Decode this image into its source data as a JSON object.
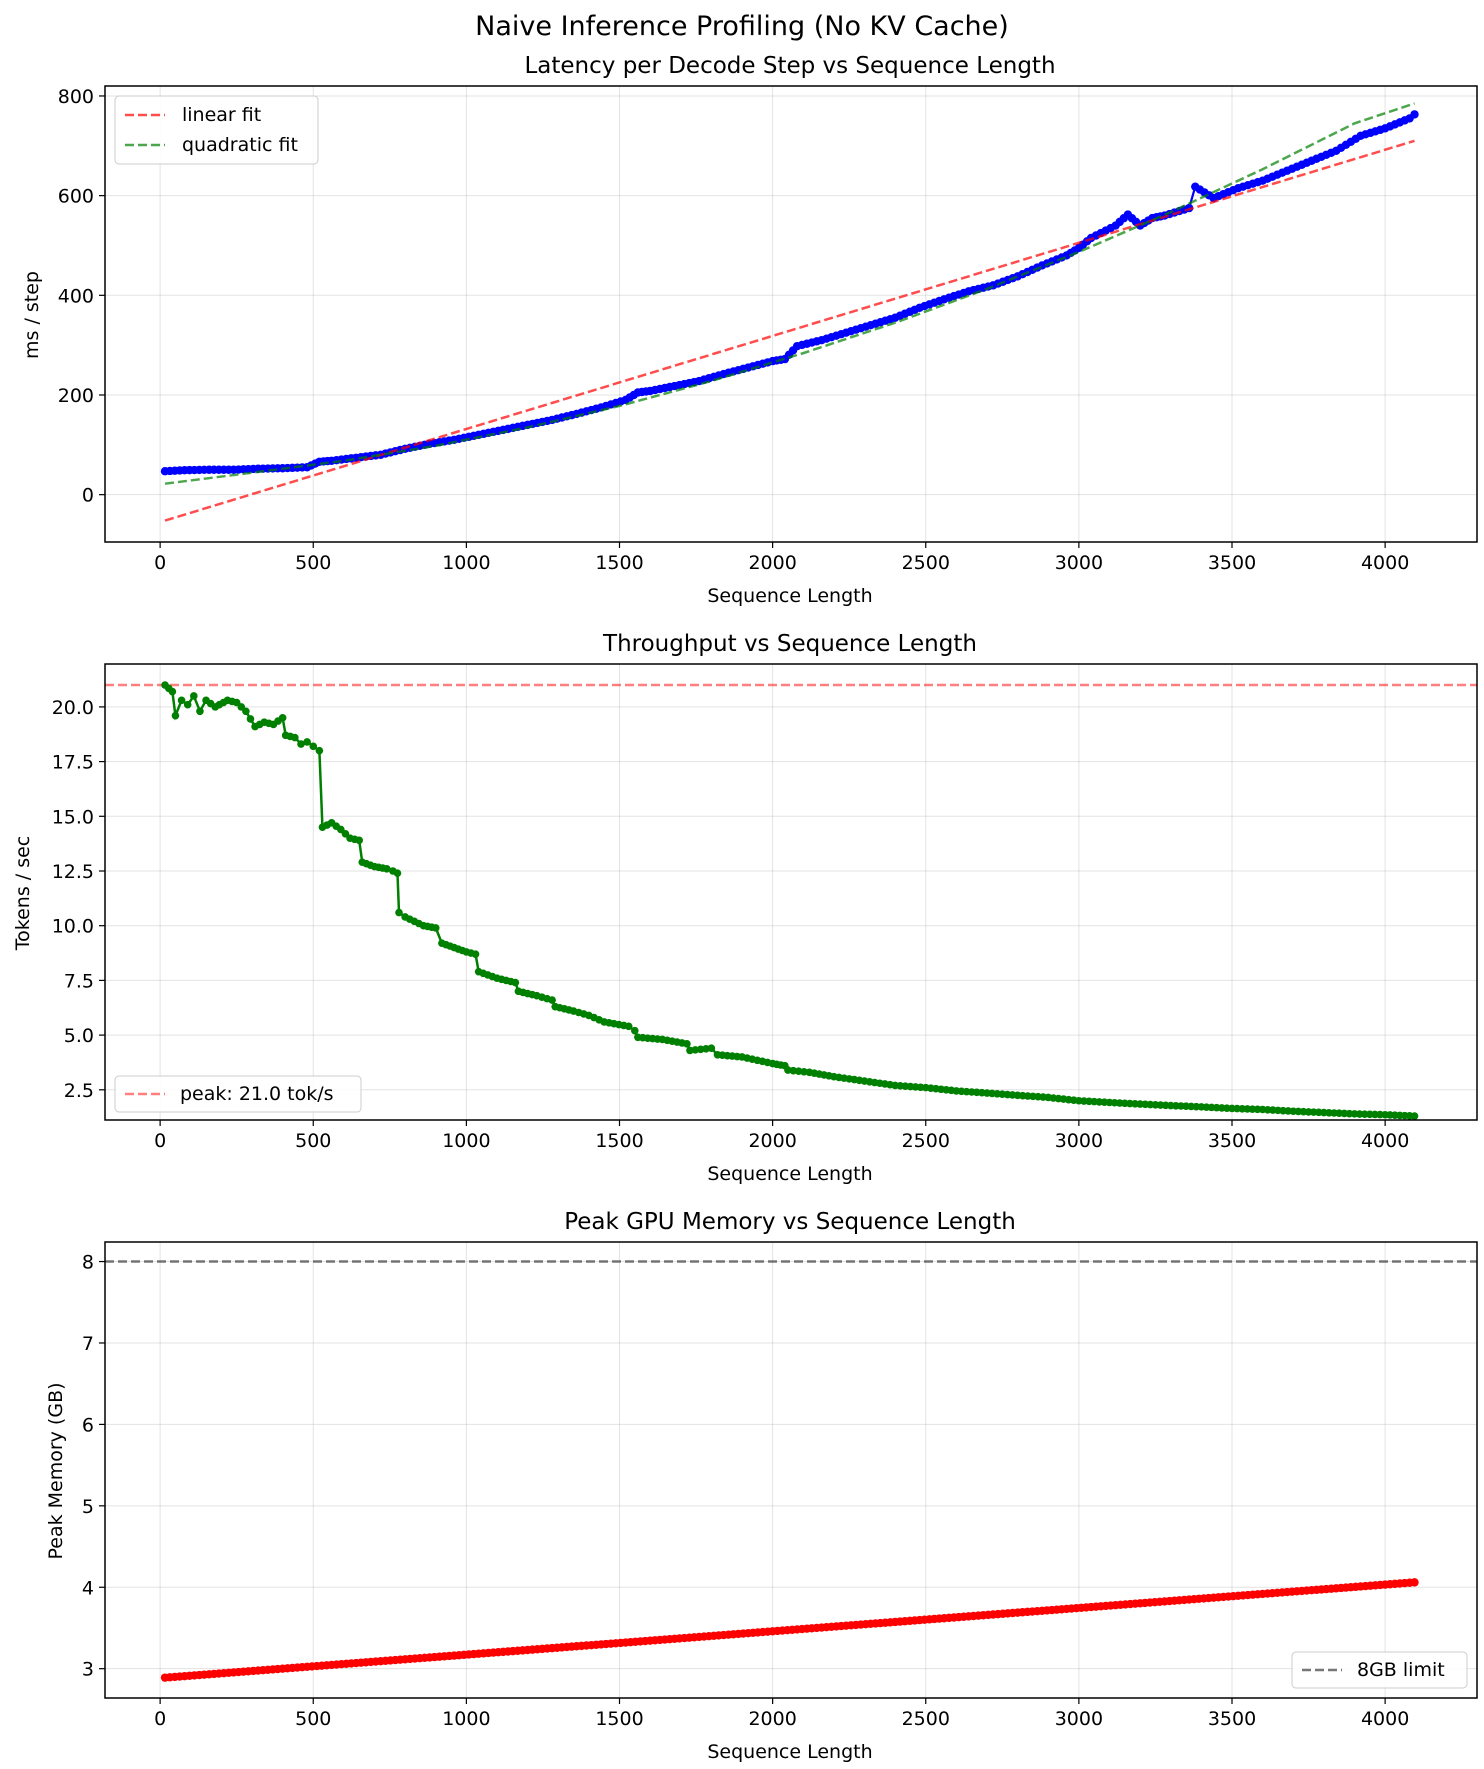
{
  "figure": {
    "suptitle": "Naive Inference Profiling (No KV Cache)"
  },
  "colors": {
    "latency_points": "#0000ff",
    "linear_fit": "#ff0000",
    "quadratic_fit": "#008000",
    "throughput_line": "#008000",
    "peak_line": "#ff0000",
    "memory_line": "#ff0000",
    "limit_line": "#555555",
    "grid": "#b0b0b0"
  },
  "chart_data": [
    {
      "type": "line",
      "title": "Latency per Decode Step vs Sequence Length",
      "xlabel": "Sequence Length",
      "ylabel": "ms / step",
      "xlim": [
        -180,
        4300
      ],
      "ylim": [
        -95,
        820
      ],
      "xticks": [
        0,
        500,
        1000,
        1500,
        2000,
        2500,
        3000,
        3500,
        4000
      ],
      "yticks": [
        0,
        200,
        400,
        600,
        800
      ],
      "grid": true,
      "legend": {
        "placement": "top-left",
        "entries": [
          "linear fit",
          "quadratic fit"
        ]
      },
      "series": [
        {
          "marker": "o",
          "x": [
            16,
            80,
            160,
            240,
            320,
            400,
            480,
            520,
            560,
            640,
            720,
            800,
            880,
            960,
            1040,
            1120,
            1200,
            1280,
            1360,
            1440,
            1520,
            1560,
            1600,
            1680,
            1760,
            1840,
            1920,
            2000,
            2040,
            2080,
            2160,
            2240,
            2320,
            2400,
            2480,
            2560,
            2640,
            2720,
            2800,
            2880,
            2960,
            3000,
            3040,
            3120,
            3160,
            3200,
            3240,
            3280,
            3360,
            3380,
            3440,
            3520,
            3600,
            3680,
            3760,
            3840,
            3920,
            4000,
            4080,
            4096
          ],
          "y": [
            47,
            49,
            50,
            50,
            52,
            53,
            55,
            66,
            68,
            74,
            80,
            92,
            102,
            110,
            120,
            130,
            140,
            150,
            162,
            175,
            190,
            205,
            208,
            218,
            228,
            242,
            255,
            268,
            272,
            298,
            310,
            325,
            340,
            355,
            375,
            392,
            408,
            420,
            438,
            460,
            480,
            495,
            515,
            540,
            562,
            540,
            555,
            560,
            575,
            618,
            595,
            615,
            630,
            650,
            670,
            690,
            720,
            735,
            755,
            763
          ]
        },
        {
          "name": "linear fit",
          "style": "dashed",
          "x": [
            16,
            4096
          ],
          "y": [
            -52,
            710
          ]
        },
        {
          "name": "quadratic fit",
          "style": "dashed",
          "x": [
            16,
            300,
            600,
            900,
            1200,
            1500,
            1800,
            2100,
            2400,
            2700,
            3000,
            3300,
            3600,
            3900,
            4096
          ],
          "y": [
            22,
            44,
            68,
            98,
            135,
            178,
            228,
            284,
            345,
            413,
            487,
            567,
            653,
            745,
            785
          ]
        }
      ]
    },
    {
      "type": "line",
      "title": "Throughput vs Sequence Length",
      "xlabel": "Sequence Length",
      "ylabel": "Tokens / sec",
      "xlim": [
        -180,
        4300
      ],
      "ylim": [
        1.12,
        21.96
      ],
      "xticks": [
        0,
        500,
        1000,
        1500,
        2000,
        2500,
        3000,
        3500,
        4000
      ],
      "yticks": [
        2.5,
        5.0,
        7.5,
        10.0,
        12.5,
        15.0,
        17.5,
        20.0
      ],
      "ytick_labels": [
        "2.5",
        "5.0",
        "7.5",
        "10.0",
        "12.5",
        "15.0",
        "17.5",
        "20.0"
      ],
      "grid": true,
      "legend": {
        "placement": "bottom-left",
        "entries": [
          "peak: 21.0 tok/s"
        ]
      },
      "series": [
        {
          "marker": "o",
          "x": [
            16,
            40,
            50,
            70,
            90,
            110,
            130,
            150,
            180,
            220,
            250,
            280,
            310,
            340,
            370,
            400,
            410,
            440,
            460,
            480,
            500,
            520,
            530,
            560,
            590,
            620,
            650,
            660,
            700,
            740,
            760,
            775,
            780,
            800,
            830,
            860,
            900,
            920,
            960,
            1000,
            1030,
            1040,
            1100,
            1160,
            1170,
            1230,
            1280,
            1290,
            1350,
            1400,
            1450,
            1530,
            1550,
            1560,
            1640,
            1720,
            1730,
            1800,
            1820,
            1900,
            2000,
            2040,
            2050,
            2120,
            2200,
            2300,
            2400,
            2500,
            2600,
            2700,
            2800,
            2900,
            3000,
            3100,
            3200,
            3300,
            3400,
            3500,
            3600,
            3700,
            3800,
            3900,
            4000,
            4096
          ],
          "y": [
            21.0,
            20.7,
            19.6,
            20.3,
            20.1,
            20.5,
            19.8,
            20.3,
            20.0,
            20.3,
            20.2,
            19.8,
            19.1,
            19.3,
            19.2,
            19.5,
            18.7,
            18.6,
            18.3,
            18.4,
            18.2,
            18.0,
            14.5,
            14.7,
            14.4,
            14.0,
            13.9,
            12.9,
            12.7,
            12.6,
            12.5,
            12.4,
            10.6,
            10.4,
            10.2,
            10.0,
            9.9,
            9.2,
            9.0,
            8.8,
            8.7,
            7.9,
            7.6,
            7.4,
            7.0,
            6.8,
            6.6,
            6.3,
            6.1,
            5.9,
            5.6,
            5.4,
            5.2,
            4.9,
            4.8,
            4.6,
            4.3,
            4.4,
            4.1,
            4.0,
            3.7,
            3.6,
            3.4,
            3.3,
            3.1,
            2.9,
            2.7,
            2.6,
            2.45,
            2.35,
            2.25,
            2.15,
            2.0,
            1.92,
            1.85,
            1.78,
            1.72,
            1.65,
            1.6,
            1.52,
            1.46,
            1.4,
            1.36,
            1.3
          ]
        },
        {
          "name": "peak: 21.0 tok/s",
          "style": "dashed",
          "y": 21.0
        }
      ]
    },
    {
      "type": "line",
      "title": "Peak GPU Memory vs Sequence Length",
      "xlabel": "Sequence Length",
      "ylabel": "Peak Memory (GB)",
      "xlim": [
        -180,
        4300
      ],
      "ylim": [
        2.64,
        8.24
      ],
      "xticks": [
        0,
        500,
        1000,
        1500,
        2000,
        2500,
        3000,
        3500,
        4000
      ],
      "yticks": [
        3,
        4,
        5,
        6,
        7,
        8
      ],
      "grid": true,
      "legend": {
        "placement": "bottom-right",
        "entries": [
          "8GB limit"
        ]
      },
      "series": [
        {
          "marker": "o",
          "x": [
            16,
            4096
          ],
          "y": [
            2.89,
            4.06
          ]
        },
        {
          "name": "8GB limit",
          "style": "dashed",
          "y": 8.0
        }
      ]
    }
  ]
}
